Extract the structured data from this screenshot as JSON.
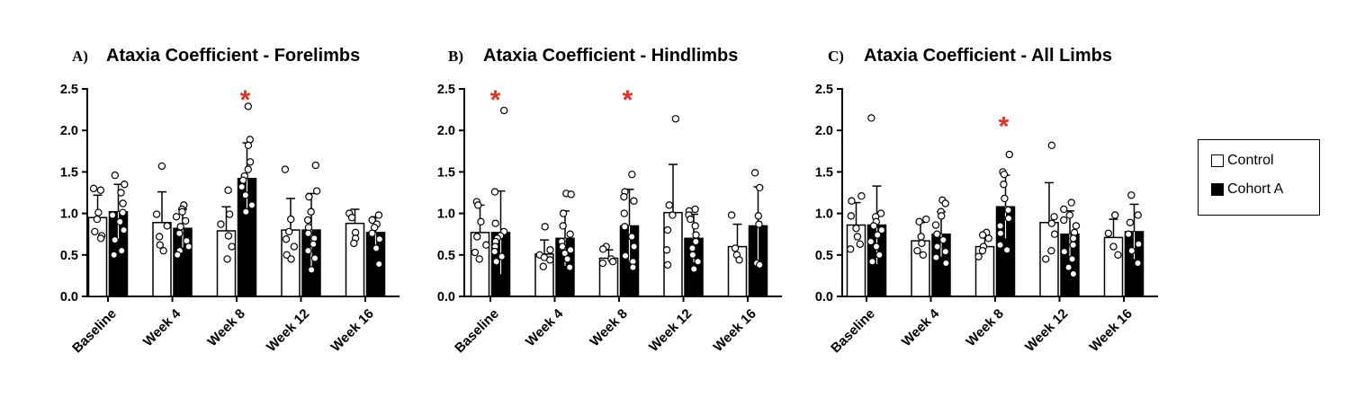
{
  "legend": {
    "items": [
      {
        "label": "Control",
        "fill": "#ffffff"
      },
      {
        "label": "Cohort A",
        "fill": "#000000"
      }
    ]
  },
  "colors": {
    "control": "#ffffff",
    "cohort": "#000000",
    "significance": "#e8301c",
    "axis": "#000000"
  },
  "chart_data": [
    {
      "type": "bar",
      "letter": "A)",
      "title": "Ataxia Coefficient - Forelimbs",
      "xlabel": "",
      "ylabel": "",
      "ylim": [
        0,
        2.5
      ],
      "yticks": [
        "0.0",
        "0.5",
        "1.0",
        "1.5",
        "2.0",
        "2.5"
      ],
      "categories": [
        "Baseline",
        "Week 4",
        "Week 8",
        "Week 12",
        "Week 16"
      ],
      "series": [
        {
          "name": "Control",
          "values": [
            0.95,
            0.89,
            0.79,
            0.8,
            0.88
          ],
          "sd": [
            0.27,
            0.37,
            0.29,
            0.38,
            0.17
          ],
          "points": [
            [
              1.3,
              1.28,
              1.01,
              0.93,
              0.78,
              0.73,
              0.7
            ],
            [
              1.57,
              0.99,
              0.85,
              0.72,
              0.62,
              0.55
            ],
            [
              1.28,
              0.99,
              0.87,
              0.73,
              0.6,
              0.45
            ],
            [
              1.53,
              0.93,
              0.78,
              0.69,
              0.6,
              0.5,
              0.45
            ],
            [
              1.0,
              0.95,
              0.77,
              0.7,
              0.64
            ]
          ]
        },
        {
          "name": "Cohort A",
          "values": [
            1.02,
            0.82,
            1.42,
            0.8,
            0.77
          ],
          "sd": [
            0.33,
            0.23,
            0.43,
            0.44,
            0.19
          ],
          "points": [
            [
              1.46,
              1.35,
              1.25,
              1.12,
              1.01,
              0.98,
              0.9,
              0.8,
              0.68,
              0.55,
              0.5
            ],
            [
              1.1,
              1.05,
              1.02,
              0.96,
              0.91,
              0.84,
              0.76,
              0.67,
              0.6,
              0.55,
              0.5
            ],
            [
              2.29,
              1.89,
              1.82,
              1.62,
              1.53,
              1.45,
              1.4,
              1.32,
              1.22,
              1.1,
              1.02
            ],
            [
              1.58,
              1.27,
              1.2,
              1.02,
              0.92,
              0.83,
              0.76,
              0.7,
              0.63,
              0.55,
              0.46,
              0.32
            ],
            [
              0.98,
              0.92,
              0.87,
              0.83,
              0.76,
              0.69,
              0.58,
              0.39
            ]
          ]
        }
      ],
      "significance": [
        {
          "category": "Week 8",
          "value": 2.5,
          "offset": 0.5,
          "symbol": "*"
        }
      ]
    },
    {
      "type": "bar",
      "letter": "B)",
      "title": "Ataxia Coefficient - Hindlimbs",
      "xlabel": "",
      "ylabel": "",
      "ylim": [
        0,
        2.5
      ],
      "yticks": [
        "0.0",
        "0.5",
        "1.0",
        "1.5",
        "2.0",
        "2.5"
      ],
      "categories": [
        "Baseline",
        "Week 4",
        "Week 8",
        "Week 12",
        "Week 16"
      ],
      "series": [
        {
          "name": "Control",
          "values": [
            0.77,
            0.51,
            0.46,
            1.01,
            0.6
          ],
          "sd": [
            0.33,
            0.17,
            0.1,
            0.58,
            0.27
          ],
          "points": [
            [
              1.14,
              1.1,
              0.9,
              0.72,
              0.62,
              0.53,
              0.45
            ],
            [
              0.84,
              0.56,
              0.5,
              0.47,
              0.44,
              0.36
            ],
            [
              0.6,
              0.57,
              0.45,
              0.42,
              0.4
            ],
            [
              2.14,
              1.1,
              0.98,
              0.8,
              0.56,
              0.38
            ],
            [
              0.98,
              0.58,
              0.5,
              0.44
            ]
          ]
        },
        {
          "name": "Cohort A",
          "values": [
            0.77,
            0.7,
            0.85,
            0.7,
            0.85
          ],
          "sd": [
            0.5,
            0.33,
            0.44,
            0.29,
            0.47
          ],
          "points": [
            [
              2.24,
              1.26,
              0.88,
              0.78,
              0.73,
              0.7,
              0.66,
              0.6,
              0.54,
              0.48,
              0.42
            ],
            [
              1.24,
              1.23,
              1.0,
              0.85,
              0.75,
              0.66,
              0.6,
              0.56,
              0.52,
              0.45,
              0.35
            ],
            [
              1.47,
              1.26,
              1.2,
              1.15,
              1.0,
              0.84,
              0.72,
              0.6,
              0.49,
              0.42,
              0.35
            ],
            [
              1.05,
              1.03,
              0.98,
              0.93,
              0.85,
              0.74,
              0.66,
              0.58,
              0.5,
              0.42,
              0.33
            ],
            [
              1.49,
              1.31,
              0.97,
              0.87,
              0.4,
              0.38
            ]
          ]
        }
      ],
      "significance": [
        {
          "category": "Baseline",
          "value": 2.5,
          "offset": 0.5,
          "symbol": "*"
        },
        {
          "category": "Week 8",
          "value": 2.5,
          "offset": 0.5,
          "symbol": "*"
        }
      ]
    },
    {
      "type": "bar",
      "letter": "C)",
      "title": "Ataxia Coefficient - All Limbs",
      "xlabel": "",
      "ylabel": "",
      "ylim": [
        0,
        2.5
      ],
      "yticks": [
        "0.0",
        "0.5",
        "1.0",
        "1.5",
        "2.0",
        "2.5"
      ],
      "categories": [
        "Baseline",
        "Week 4",
        "Week 8",
        "Week 12",
        "Week 16"
      ],
      "series": [
        {
          "name": "Control",
          "values": [
            0.86,
            0.67,
            0.6,
            0.89,
            0.71
          ],
          "sd": [
            0.27,
            0.22,
            0.16,
            0.48,
            0.22
          ],
          "points": [
            [
              1.21,
              1.15,
              0.97,
              0.82,
              0.72,
              0.63,
              0.57
            ],
            [
              0.93,
              0.9,
              0.72,
              0.64,
              0.55,
              0.5
            ],
            [
              0.77,
              0.74,
              0.7,
              0.6,
              0.55,
              0.48
            ],
            [
              1.82,
              0.96,
              0.88,
              0.75,
              0.55,
              0.45
            ],
            [
              0.98,
              0.76,
              0.6,
              0.5
            ]
          ]
        },
        {
          "name": "Cohort A",
          "values": [
            0.86,
            0.75,
            1.08,
            0.75,
            0.78
          ],
          "sd": [
            0.47,
            0.27,
            0.38,
            0.28,
            0.33
          ],
          "points": [
            [
              2.15,
              1.0,
              0.96,
              0.9,
              0.85,
              0.8,
              0.74,
              0.66,
              0.6,
              0.5,
              0.42
            ],
            [
              1.16,
              1.12,
              1.02,
              0.97,
              0.86,
              0.75,
              0.68,
              0.6,
              0.54,
              0.47,
              0.4
            ],
            [
              1.71,
              1.5,
              1.47,
              1.35,
              1.18,
              1.04,
              0.94,
              0.85,
              0.76,
              0.62,
              0.56
            ],
            [
              1.13,
              1.05,
              0.98,
              0.92,
              0.85,
              0.77,
              0.7,
              0.62,
              0.54,
              0.45,
              0.35,
              0.27
            ],
            [
              1.22,
              0.98,
              0.89,
              0.75,
              0.63,
              0.55,
              0.4
            ]
          ]
        }
      ],
      "significance": [
        {
          "category": "Week 8",
          "value": 2.18,
          "offset": 0.5,
          "symbol": "*"
        }
      ]
    }
  ]
}
